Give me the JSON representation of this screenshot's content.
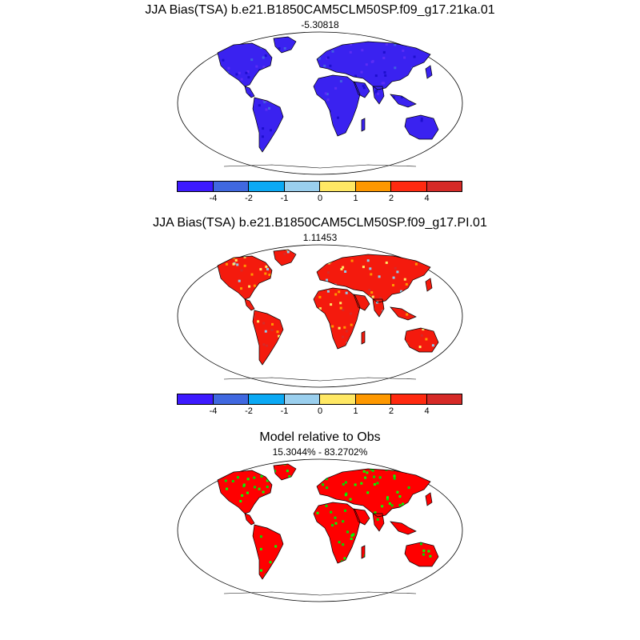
{
  "panels": [
    {
      "title": "JJA Bias(TSA) b.e21.B1850CAM5CLM50SP.f09_g17.21ka.01",
      "subtitle": "-5.30818",
      "land_color": "#3a22f0",
      "speckle_colors": [
        "#1e0fcf",
        "#4160e0",
        "#5a2df5"
      ],
      "has_legend": true
    },
    {
      "title": "JJA Bias(TSA) b.e21.B1850CAM5CLM50SP.f09_g17.PI.01",
      "subtitle": "1.11453",
      "land_color": "#f41a0d",
      "speckle_colors": [
        "#fe9800",
        "#ffe864",
        "#8fcbea",
        "#d62a27"
      ],
      "has_legend": true
    },
    {
      "title": "Model relative to Obs",
      "subtitle": "15.3044% - 83.2702%",
      "land_color": "#ff0000",
      "speckle_colors": [
        "#00ff00",
        "#00dd00"
      ],
      "has_legend": false
    }
  ],
  "legend": {
    "colors": [
      "#3d1aff",
      "#4068e0",
      "#0ba9f4",
      "#9acfee",
      "#ffe864",
      "#fe9800",
      "#ff2a10",
      "#d62a27"
    ],
    "tick_labels": [
      "-4",
      "-2",
      "-1",
      "0",
      "1",
      "2",
      "4"
    ]
  }
}
